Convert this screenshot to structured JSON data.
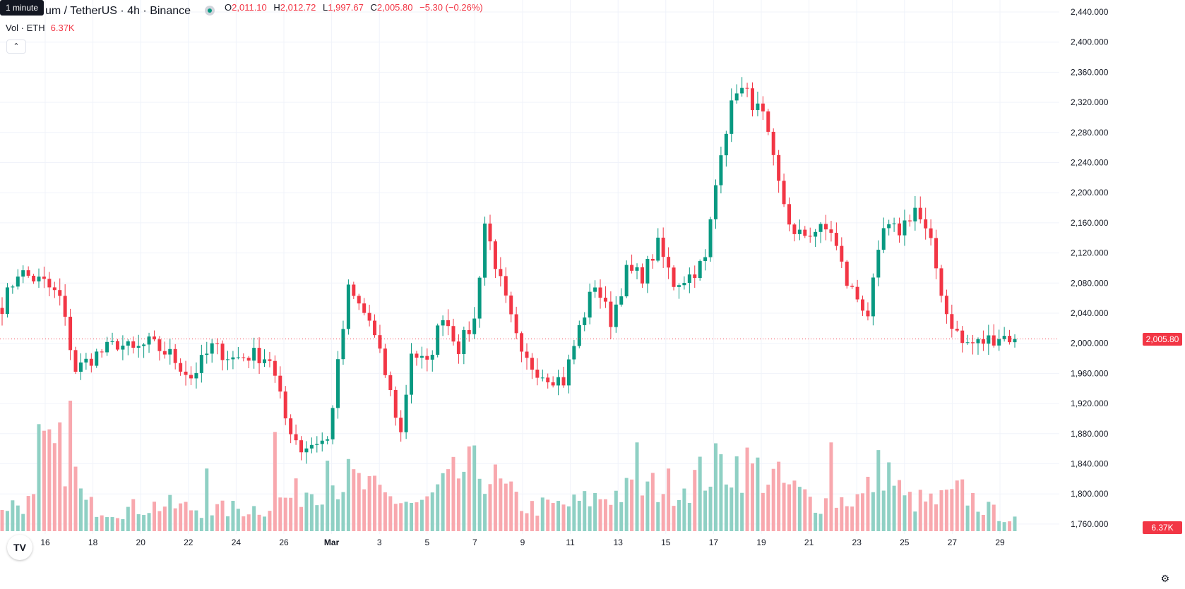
{
  "header": {
    "tooltip": "1 minute",
    "title": "um / TetherUS · 4h · Binance",
    "ohlc": [
      {
        "key": "O",
        "value": "2,011.10"
      },
      {
        "key": "H",
        "value": "2,012.72"
      },
      {
        "key": "L",
        "value": "1,997.67"
      },
      {
        "key": "C",
        "value": "2,005.80"
      }
    ],
    "change": "−5.30 (−0.26%)",
    "volume_label": "Vol · ETH",
    "volume_value": "6.37K",
    "collapse_symbol": "⌃"
  },
  "price_axis": {
    "current_price_label": "2,005.80",
    "current_volume_label": "6.37K"
  },
  "colors": {
    "up": "#089981",
    "down": "#f23645",
    "up_volume": "#8fd0c4",
    "down_volume": "#f8a8ae",
    "grid": "#f0f3fa"
  },
  "icons": {
    "logo": "tradingview-logo-icon",
    "settings": "gear-icon"
  },
  "logo_text": "TV",
  "settings_glyph": "⚙",
  "chart_data": {
    "type": "candlestick",
    "interval": "4h",
    "ylim": [
      1740,
      2460
    ],
    "y_ticks": [
      1760,
      1800,
      1840,
      1880,
      1920,
      1960,
      2000,
      2040,
      2080,
      2120,
      2160,
      2200,
      2240,
      2280,
      2320,
      2360,
      2400,
      2440
    ],
    "x_ticks": [
      "16",
      "18",
      "20",
      "22",
      "24",
      "26",
      "Mar",
      "3",
      "5",
      "7",
      "9",
      "11",
      "13",
      "15",
      "17",
      "19",
      "21",
      "23",
      "25",
      "27",
      "29"
    ],
    "current_price": 2005.8,
    "anchors": [
      [
        0,
        2050
      ],
      [
        3,
        2095
      ],
      [
        8,
        2080
      ],
      [
        11,
        2060
      ],
      [
        14,
        1965
      ],
      [
        18,
        1985
      ],
      [
        22,
        2000
      ],
      [
        25,
        1990
      ],
      [
        28,
        2000
      ],
      [
        32,
        1985
      ],
      [
        36,
        1955
      ],
      [
        40,
        1995
      ],
      [
        44,
        1980
      ],
      [
        48,
        1985
      ],
      [
        51,
        1980
      ],
      [
        54,
        1900
      ],
      [
        57,
        1860
      ],
      [
        60,
        1870
      ],
      [
        62,
        1870
      ],
      [
        64,
        1970
      ],
      [
        66,
        2070
      ],
      [
        70,
        2030
      ],
      [
        73,
        1960
      ],
      [
        76,
        1880
      ],
      [
        78,
        1990
      ],
      [
        81,
        1970
      ],
      [
        84,
        2040
      ],
      [
        87,
        1995
      ],
      [
        90,
        2030
      ],
      [
        92,
        2160
      ],
      [
        95,
        2080
      ],
      [
        99,
        1980
      ],
      [
        103,
        1960
      ],
      [
        107,
        1950
      ],
      [
        110,
        2020
      ],
      [
        113,
        2080
      ],
      [
        116,
        2030
      ],
      [
        119,
        2095
      ],
      [
        122,
        2090
      ],
      [
        125,
        2130
      ],
      [
        128,
        2080
      ],
      [
        131,
        2090
      ],
      [
        134,
        2110
      ],
      [
        137,
        2260
      ],
      [
        140,
        2340
      ],
      [
        142,
        2330
      ],
      [
        145,
        2300
      ],
      [
        148,
        2210
      ],
      [
        151,
        2140
      ],
      [
        155,
        2150
      ],
      [
        158,
        2150
      ],
      [
        161,
        2080
      ],
      [
        165,
        2040
      ],
      [
        168,
        2150
      ],
      [
        171,
        2150
      ],
      [
        174,
        2180
      ],
      [
        177,
        2130
      ],
      [
        180,
        2040
      ],
      [
        183,
        2000
      ],
      [
        186,
        2000
      ],
      [
        190,
        2010
      ],
      [
        193,
        2007
      ]
    ],
    "volume_anchors": [
      [
        0,
        1.0
      ],
      [
        6,
        1.1
      ],
      [
        8,
        2.8
      ],
      [
        12,
        3.0
      ],
      [
        16,
        1.0
      ],
      [
        22,
        0.8
      ],
      [
        30,
        1.0
      ],
      [
        40,
        0.8
      ],
      [
        50,
        0.9
      ],
      [
        55,
        1.3
      ],
      [
        60,
        1.8
      ],
      [
        66,
        2.0
      ],
      [
        73,
        1.3
      ],
      [
        80,
        1.0
      ],
      [
        88,
        2.3
      ],
      [
        92,
        2.3
      ],
      [
        96,
        1.5
      ],
      [
        100,
        0.9
      ],
      [
        108,
        1.0
      ],
      [
        116,
        1.4
      ],
      [
        125,
        1.7
      ],
      [
        130,
        1.8
      ],
      [
        137,
        2.5
      ],
      [
        141,
        2.6
      ],
      [
        147,
        2.0
      ],
      [
        155,
        1.1
      ],
      [
        164,
        1.3
      ],
      [
        168,
        2.6
      ],
      [
        172,
        1.2
      ],
      [
        178,
        1.1
      ],
      [
        183,
        1.5
      ],
      [
        188,
        0.8
      ],
      [
        193,
        0.4
      ]
    ],
    "volume_spikes": [
      [
        7,
        4.1
      ],
      [
        13,
        5.0
      ],
      [
        39,
        2.4
      ],
      [
        52,
        3.8
      ],
      [
        62,
        2.7
      ],
      [
        121,
        3.4
      ],
      [
        158,
        3.4
      ]
    ]
  }
}
